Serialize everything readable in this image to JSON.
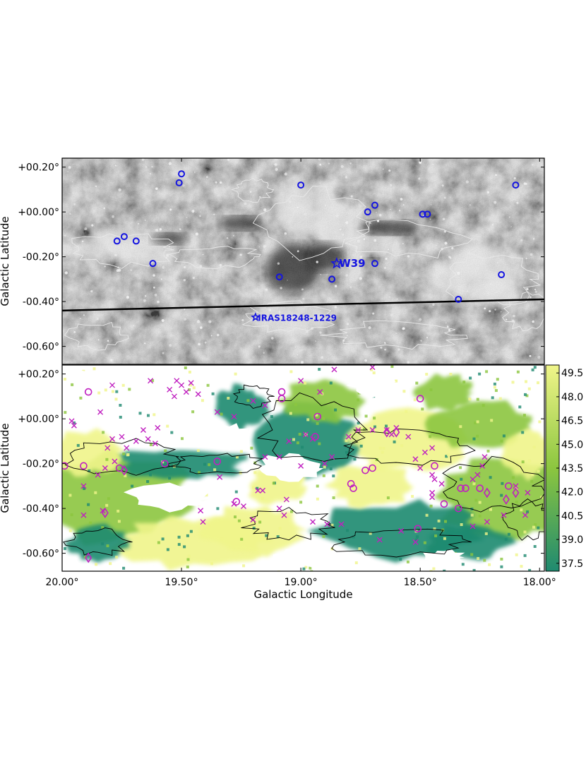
{
  "top_panel": {
    "ylabel": "Galactic Latitude",
    "yticks": [
      {
        "label": "+00.20°",
        "value": 0.2
      },
      {
        "label": "+00.00°",
        "value": 0.0
      },
      {
        "label": "-00.20°",
        "value": -0.2
      },
      {
        "label": "-00.40°",
        "value": -0.4
      },
      {
        "label": "-00.60°",
        "value": -0.6
      }
    ],
    "annotations": [
      {
        "text": "W39",
        "l": 18.84,
        "b": -0.23,
        "color": "#1515e0"
      },
      {
        "text": "IRAS18248-1229",
        "l": 19.18,
        "b": -0.47,
        "color": "#1515e0"
      }
    ],
    "line": {
      "l": [
        20.0,
        17.98
      ],
      "b": [
        -0.44,
        -0.39
      ],
      "color": "#000000"
    }
  },
  "bottom_panel": {
    "ylabel": "Galactic Latitude",
    "xlabel": "Galactic Longitude",
    "yticks": [
      {
        "label": "+00.20°",
        "value": 0.2
      },
      {
        "label": "+00.00°",
        "value": 0.0
      },
      {
        "label": "-00.20°",
        "value": -0.2
      },
      {
        "label": "-00.40°",
        "value": -0.4
      },
      {
        "label": "-00.60°",
        "value": -0.6
      }
    ],
    "xticks": [
      {
        "label": "20.00°",
        "value": 20.0
      },
      {
        "label": "19.50°",
        "value": 19.5
      },
      {
        "label": "19.00°",
        "value": 19.0
      },
      {
        "label": "18.50°",
        "value": 18.5
      },
      {
        "label": "18.00°",
        "value": 18.0
      }
    ]
  },
  "colorbar": {
    "labels": [
      "49.5",
      "48.0",
      "46.5",
      "45.0",
      "43.5",
      "42.0",
      "40.5",
      "39.0",
      "37.5"
    ],
    "ticks": [
      49.5,
      48.0,
      46.5,
      45.0,
      43.5,
      42.0,
      40.5,
      39.0,
      37.5
    ],
    "range": [
      37.0,
      50.0
    ],
    "color_low": "#1f8a70",
    "color_mid": "#8cc63f",
    "color_high": "#f0f58a"
  },
  "chart_data": {
    "type": "scatter",
    "xlim": [
      20.0,
      17.98
    ],
    "ylim_top": [
      -0.68,
      0.24
    ],
    "ylim_bottom": [
      -0.68,
      0.24
    ],
    "colors": {
      "circle": "#1515e0",
      "star": "#1515e0",
      "cross": "#c020c0",
      "magenta_circle": "#c020c0",
      "diamond": "#c020c0",
      "contour_top": "#e8e8e8",
      "contour_bottom": "#000000"
    },
    "top_circles": [
      {
        "l": 19.5,
        "b": 0.17
      },
      {
        "l": 19.51,
        "b": 0.13
      },
      {
        "l": 19.0,
        "b": 0.12
      },
      {
        "l": 18.72,
        "b": 0.0
      },
      {
        "l": 18.69,
        "b": 0.03
      },
      {
        "l": 18.49,
        "b": -0.01
      },
      {
        "l": 18.47,
        "b": -0.01
      },
      {
        "l": 18.1,
        "b": 0.12
      },
      {
        "l": 19.77,
        "b": -0.13
      },
      {
        "l": 19.74,
        "b": -0.11
      },
      {
        "l": 19.69,
        "b": -0.13
      },
      {
        "l": 19.62,
        "b": -0.23
      },
      {
        "l": 19.09,
        "b": -0.29
      },
      {
        "l": 18.87,
        "b": -0.3
      },
      {
        "l": 18.69,
        "b": -0.23
      },
      {
        "l": 18.34,
        "b": -0.39
      },
      {
        "l": 18.16,
        "b": -0.28
      }
    ],
    "top_stars": [
      {
        "l": 18.85,
        "b": -0.23
      },
      {
        "l": 19.19,
        "b": -0.47
      }
    ],
    "crosses": [
      {
        "l": 18.86,
        "b": 0.22
      },
      {
        "l": 18.7,
        "b": 0.23
      },
      {
        "l": 19.52,
        "b": 0.17
      },
      {
        "l": 19.5,
        "b": 0.15
      },
      {
        "l": 19.48,
        "b": 0.12
      },
      {
        "l": 19.46,
        "b": 0.16
      },
      {
        "l": 19.43,
        "b": 0.11
      },
      {
        "l": 19.53,
        "b": 0.1
      },
      {
        "l": 19.55,
        "b": 0.13
      },
      {
        "l": 19.63,
        "b": 0.17
      },
      {
        "l": 19.79,
        "b": 0.15
      },
      {
        "l": 19.0,
        "b": 0.17
      },
      {
        "l": 18.92,
        "b": 0.12
      },
      {
        "l": 19.2,
        "b": 0.08
      },
      {
        "l": 19.15,
        "b": 0.06
      },
      {
        "l": 19.35,
        "b": 0.03
      },
      {
        "l": 19.28,
        "b": 0.01
      },
      {
        "l": 19.84,
        "b": 0.03
      },
      {
        "l": 19.96,
        "b": -0.01
      },
      {
        "l": 19.95,
        "b": -0.03
      },
      {
        "l": 19.66,
        "b": -0.05
      },
      {
        "l": 19.6,
        "b": -0.04
      },
      {
        "l": 19.64,
        "b": -0.09
      },
      {
        "l": 19.61,
        "b": -0.11
      },
      {
        "l": 19.69,
        "b": -0.1
      },
      {
        "l": 19.73,
        "b": -0.13
      },
      {
        "l": 19.75,
        "b": -0.08
      },
      {
        "l": 19.79,
        "b": -0.09
      },
      {
        "l": 19.81,
        "b": -0.13
      },
      {
        "l": 19.78,
        "b": -0.19
      },
      {
        "l": 19.82,
        "b": -0.22
      },
      {
        "l": 19.85,
        "b": -0.25
      },
      {
        "l": 19.91,
        "b": -0.3
      },
      {
        "l": 19.83,
        "b": -0.41
      },
      {
        "l": 19.91,
        "b": -0.43
      },
      {
        "l": 19.42,
        "b": -0.41
      },
      {
        "l": 19.41,
        "b": -0.46
      },
      {
        "l": 19.34,
        "b": -0.26
      },
      {
        "l": 19.15,
        "b": -0.17
      },
      {
        "l": 19.09,
        "b": -0.17
      },
      {
        "l": 19.05,
        "b": -0.1
      },
      {
        "l": 19.18,
        "b": -0.32
      },
      {
        "l": 19.16,
        "b": -0.32
      },
      {
        "l": 19.0,
        "b": -0.21
      },
      {
        "l": 18.98,
        "b": -0.07
      },
      {
        "l": 18.95,
        "b": -0.09
      },
      {
        "l": 18.9,
        "b": -0.2
      },
      {
        "l": 18.87,
        "b": -0.17
      },
      {
        "l": 18.8,
        "b": -0.08
      },
      {
        "l": 18.76,
        "b": -0.05
      },
      {
        "l": 18.7,
        "b": -0.05
      },
      {
        "l": 18.62,
        "b": -0.07
      },
      {
        "l": 18.64,
        "b": -0.05
      },
      {
        "l": 18.55,
        "b": -0.08
      },
      {
        "l": 18.6,
        "b": -0.04
      },
      {
        "l": 18.48,
        "b": -0.15
      },
      {
        "l": 18.45,
        "b": -0.13
      },
      {
        "l": 18.52,
        "b": -0.18
      },
      {
        "l": 18.5,
        "b": -0.22
      },
      {
        "l": 18.45,
        "b": -0.25
      },
      {
        "l": 18.44,
        "b": -0.27
      },
      {
        "l": 18.41,
        "b": -0.29
      },
      {
        "l": 18.45,
        "b": -0.35
      },
      {
        "l": 18.28,
        "b": -0.27
      },
      {
        "l": 18.26,
        "b": -0.25
      },
      {
        "l": 18.24,
        "b": -0.21
      },
      {
        "l": 18.23,
        "b": -0.17
      },
      {
        "l": 18.1,
        "b": -0.3
      },
      {
        "l": 18.05,
        "b": -0.33
      },
      {
        "l": 18.06,
        "b": -0.43
      },
      {
        "l": 18.15,
        "b": -0.43
      },
      {
        "l": 18.22,
        "b": -0.46
      },
      {
        "l": 18.28,
        "b": -0.48
      },
      {
        "l": 18.45,
        "b": -0.33
      },
      {
        "l": 18.95,
        "b": -0.46
      },
      {
        "l": 18.89,
        "b": -0.47
      },
      {
        "l": 18.83,
        "b": -0.47
      },
      {
        "l": 19.07,
        "b": -0.43
      },
      {
        "l": 19.09,
        "b": -0.4
      },
      {
        "l": 19.06,
        "b": -0.36
      },
      {
        "l": 19.28,
        "b": -0.38
      },
      {
        "l": 19.24,
        "b": -0.39
      },
      {
        "l": 19.2,
        "b": -0.45
      },
      {
        "l": 18.67,
        "b": -0.54
      },
      {
        "l": 18.58,
        "b": -0.5
      },
      {
        "l": 18.52,
        "b": -0.55
      }
    ],
    "magenta_circles": [
      {
        "l": 19.99,
        "b": -0.21
      },
      {
        "l": 19.91,
        "b": -0.21
      },
      {
        "l": 19.89,
        "b": 0.12
      },
      {
        "l": 19.76,
        "b": -0.22
      },
      {
        "l": 19.57,
        "b": -0.2
      },
      {
        "l": 19.35,
        "b": -0.19
      },
      {
        "l": 19.27,
        "b": -0.37
      },
      {
        "l": 19.08,
        "b": 0.12
      },
      {
        "l": 19.08,
        "b": 0.09
      },
      {
        "l": 18.93,
        "b": 0.01
      },
      {
        "l": 18.94,
        "b": -0.08
      },
      {
        "l": 18.79,
        "b": -0.29
      },
      {
        "l": 18.5,
        "b": 0.09
      },
      {
        "l": 18.44,
        "b": -0.21
      },
      {
        "l": 18.33,
        "b": -0.31
      },
      {
        "l": 18.31,
        "b": -0.31
      },
      {
        "l": 18.25,
        "b": -0.31
      },
      {
        "l": 18.13,
        "b": -0.3
      },
      {
        "l": 18.4,
        "b": -0.38
      },
      {
        "l": 18.34,
        "b": -0.4
      },
      {
        "l": 18.7,
        "b": -0.22
      },
      {
        "l": 18.73,
        "b": -0.23
      },
      {
        "l": 18.78,
        "b": -0.31
      },
      {
        "l": 18.51,
        "b": -0.49
      }
    ],
    "diamonds": [
      {
        "l": 19.82,
        "b": -0.42
      },
      {
        "l": 19.89,
        "b": -0.62
      },
      {
        "l": 19.74,
        "b": -0.23
      },
      {
        "l": 18.64,
        "b": -0.06
      },
      {
        "l": 18.6,
        "b": -0.06
      },
      {
        "l": 18.22,
        "b": -0.33
      },
      {
        "l": 18.1,
        "b": -0.33
      },
      {
        "l": 18.14,
        "b": -0.36
      }
    ]
  }
}
